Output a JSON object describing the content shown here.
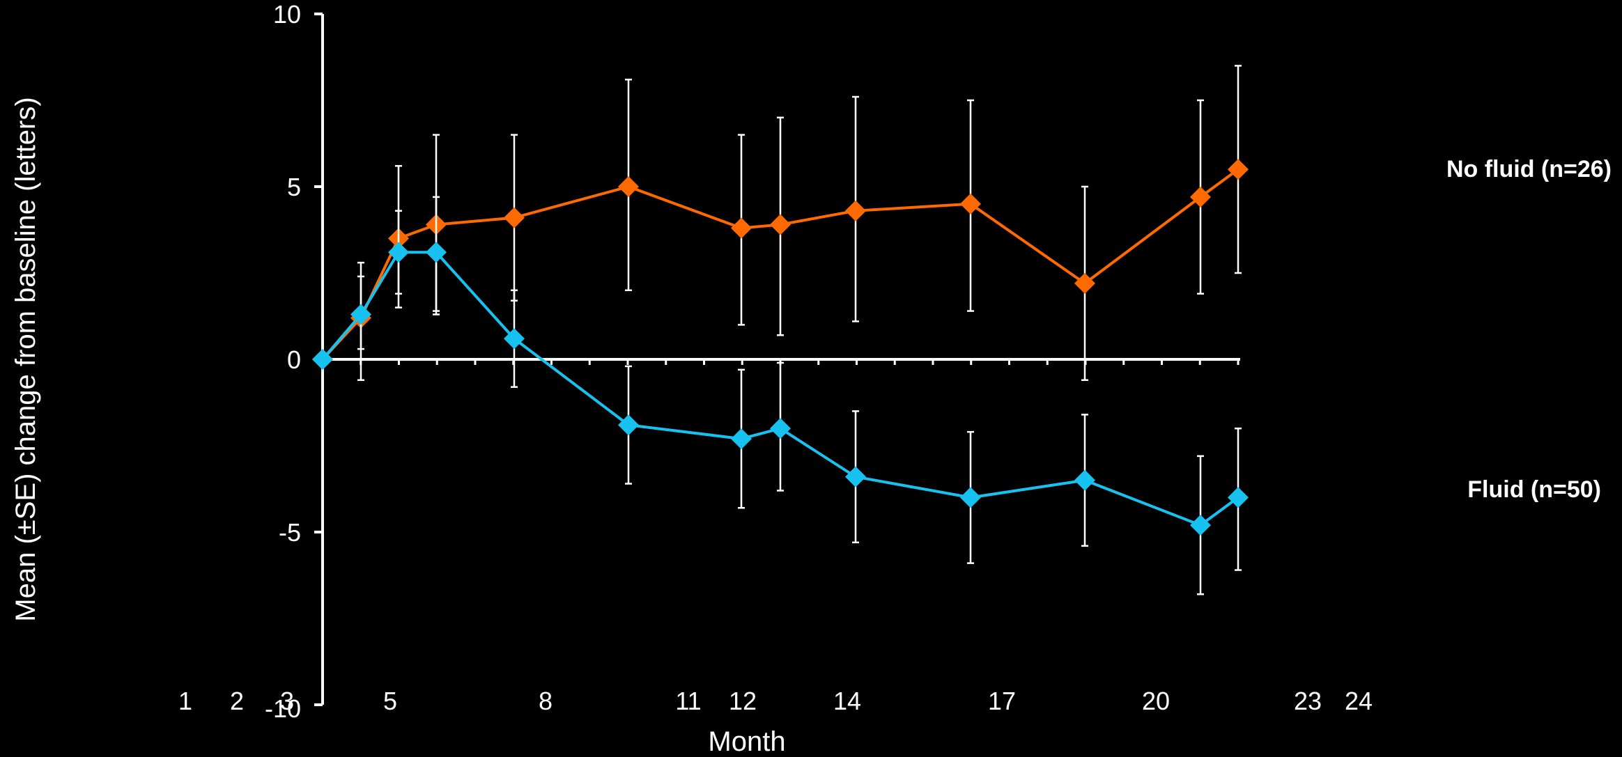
{
  "chart_data": {
    "type": "line",
    "xlabel": "Month",
    "ylabel": "Mean (±SE) change from baseline (letters)",
    "ylim": [
      -10,
      10
    ],
    "yticks": [
      "10",
      "5",
      "0",
      "-5",
      "-10"
    ],
    "xtick_labels": [
      "1",
      "2",
      "3",
      "5",
      "8",
      "11",
      "12",
      "14",
      "17",
      "20",
      "23",
      "24"
    ],
    "grid": false,
    "legend_placement": "right",
    "x": [
      0,
      1,
      2,
      3,
      5,
      8,
      11,
      12,
      14,
      17,
      20,
      23,
      24
    ],
    "series": [
      {
        "name": "No fluid (n=26)",
        "color": "#ff6a00",
        "values": [
          0,
          1.2,
          3.5,
          3.9,
          4.1,
          5.0,
          3.8,
          3.9,
          4.3,
          4.5,
          2.2,
          4.7,
          5.5
        ],
        "err_low": [
          0,
          -0.6,
          1.5,
          1.3,
          1.7,
          2.0,
          1.0,
          0.7,
          1.1,
          1.4,
          -0.6,
          1.9,
          2.5
        ],
        "err_high": [
          0,
          2.4,
          5.6,
          6.5,
          6.5,
          8.1,
          6.5,
          7.0,
          7.6,
          7.5,
          5.0,
          7.5,
          8.5
        ]
      },
      {
        "name": "Fluid (n=50)",
        "color": "#18c2f0",
        "values": [
          0,
          1.3,
          3.1,
          3.1,
          0.6,
          -1.9,
          -2.3,
          -2.0,
          -3.4,
          -4.0,
          -3.5,
          -4.8,
          -4.0
        ],
        "err_low": [
          0,
          0.3,
          1.9,
          1.4,
          -0.8,
          -3.6,
          -4.3,
          -3.8,
          -5.3,
          -5.9,
          -5.4,
          -6.8,
          -6.1
        ],
        "err_high": [
          0,
          2.8,
          4.3,
          4.7,
          2.0,
          -0.2,
          -0.3,
          -0.1,
          -1.5,
          -2.1,
          -1.6,
          -2.8,
          -2.0
        ]
      }
    ]
  }
}
